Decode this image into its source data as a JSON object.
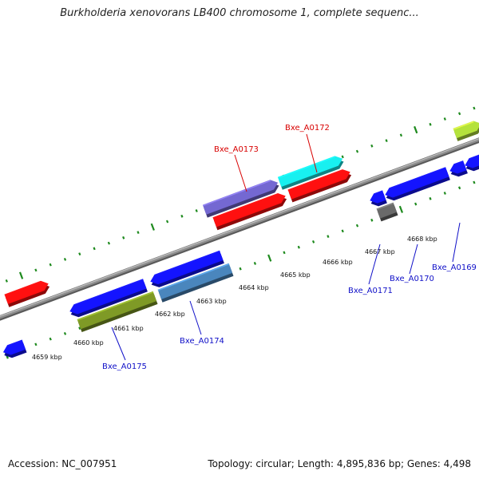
{
  "title": "Burkholderia xenovorans LB400 chromosome 1, complete sequenc...",
  "footer": {
    "accession": "Accession: NC_007951",
    "summary": "Topology: circular; Length: 4,895,836 bp; Genes: 4,498"
  },
  "colors": {
    "red": "#ff1010",
    "blue": "#1414ff",
    "olive": "#7f9a26",
    "steel": "#4a86bd",
    "purple": "#7468d2",
    "cyan": "#18f0f0",
    "gray": "#6a6a6a",
    "lime": "#b4e23c",
    "tick": "#1e8a1e",
    "backbone": "#8c8c8c",
    "label_forward": "#d80000",
    "label_reverse": "#1010c8"
  },
  "ruler": {
    "ticks": [
      {
        "label": "4659 kbp"
      },
      {
        "label": "4660 kbp"
      },
      {
        "label": "4661 kbp"
      },
      {
        "label": "4662 kbp"
      },
      {
        "label": "4663 kbp"
      },
      {
        "label": "4664 kbp"
      },
      {
        "label": "4665 kbp"
      },
      {
        "label": "4666 kbp"
      },
      {
        "label": "4667 kbp"
      },
      {
        "label": "4668 kbp"
      }
    ]
  },
  "gene_labels": {
    "forward": [
      {
        "name": "Bxe_A0173"
      },
      {
        "name": "Bxe_A0172"
      }
    ],
    "reverse": [
      {
        "name": "Bxe_A0175"
      },
      {
        "name": "Bxe_A0174"
      },
      {
        "name": "Bxe_A0171"
      },
      {
        "name": "Bxe_A0170"
      },
      {
        "name": "Bxe_A0169"
      }
    ]
  }
}
